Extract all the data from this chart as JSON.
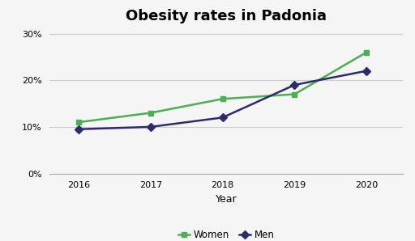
{
  "title": "Obesity rates in Padonia",
  "xlabel": "Year",
  "years": [
    2016,
    2017,
    2018,
    2019,
    2020
  ],
  "women": [
    0.11,
    0.13,
    0.16,
    0.17,
    0.26
  ],
  "men": [
    0.095,
    0.1,
    0.12,
    0.19,
    0.22
  ],
  "women_color": "#4CAF50",
  "men_color": "#2C2C6C",
  "ylim": [
    0,
    0.31
  ],
  "yticks": [
    0.0,
    0.1,
    0.2,
    0.3
  ],
  "background_color": "#f5f5f5",
  "plot_bg_color": "#f5f5f5",
  "grid_color": "#cccccc",
  "title_fontsize": 13,
  "tick_fontsize": 8,
  "label_fontsize": 9,
  "legend_labels": [
    "Women",
    "Men"
  ]
}
